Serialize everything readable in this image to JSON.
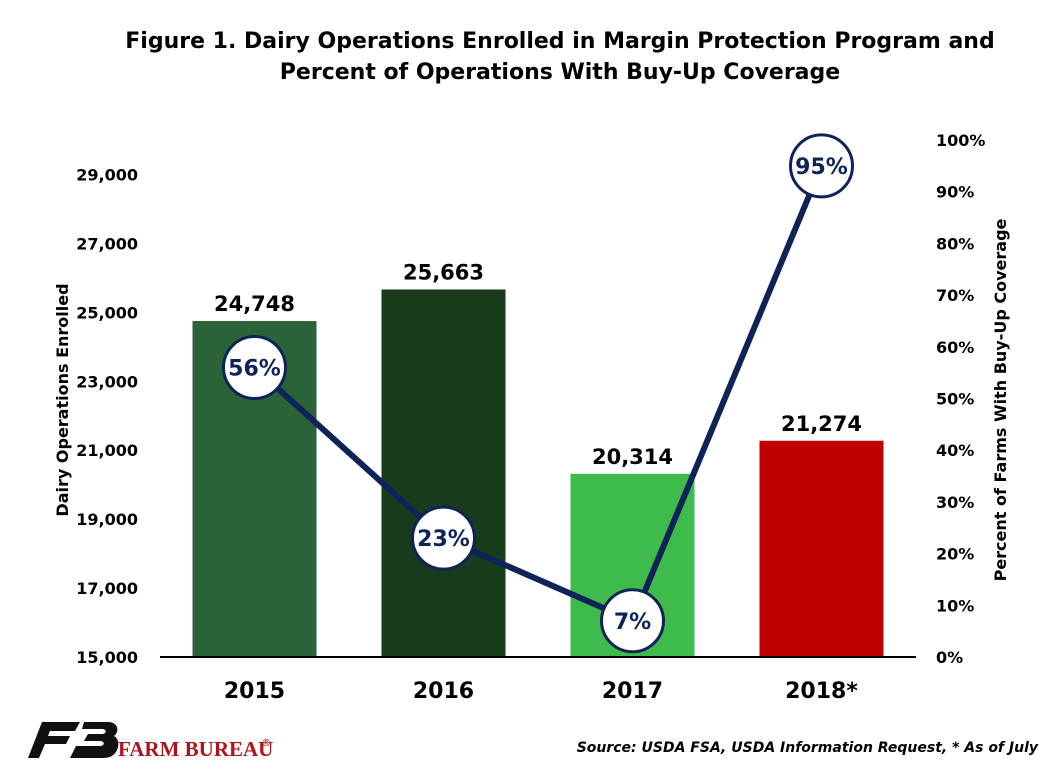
{
  "chart_data": {
    "type": "bar",
    "title_lines": [
      "Figure 1. Dairy Operations Enrolled in Margin Protection Program and",
      "Percent of Operations With Buy-Up Coverage"
    ],
    "categories": [
      "2015",
      "2016",
      "2017",
      "2018*"
    ],
    "series": [
      {
        "name": "Dairy Operations Enrolled",
        "type": "bar",
        "axis": "left",
        "values": [
          24748,
          25663,
          20314,
          21274
        ],
        "value_labels": [
          "24,748",
          "25,663",
          "20,314",
          "21,274"
        ],
        "colors": [
          "#2a6337",
          "#183b1c",
          "#3fbb4c",
          "#c00000"
        ]
      },
      {
        "name": "Percent of Farms With Buy-Up Coverage",
        "type": "line",
        "axis": "right",
        "values": [
          56,
          23,
          7,
          95
        ],
        "value_labels": [
          "56%",
          "23%",
          "7%",
          "95%"
        ],
        "color": "#102358"
      }
    ],
    "ylabel": "Dairy Operations Enrolled",
    "ylabel_right": "Percent of Farms With Buy-Up Coverage",
    "ylim": [
      15000,
      30000
    ],
    "yticks": [
      15000,
      17000,
      19000,
      21000,
      23000,
      25000,
      27000,
      29000
    ],
    "ytick_labels": [
      "15,000",
      "17,000",
      "19,000",
      "21,000",
      "23,000",
      "25,000",
      "27,000",
      "29,000"
    ],
    "ylim_right": [
      0,
      100
    ],
    "yticks_right": [
      0,
      10,
      20,
      30,
      40,
      50,
      60,
      70,
      80,
      90,
      100
    ],
    "ytick_labels_right": [
      "0%",
      "10%",
      "20%",
      "30%",
      "40%",
      "50%",
      "60%",
      "70%",
      "80%",
      "90%",
      "100%"
    ],
    "grid": false,
    "legend": "none"
  },
  "footer": {
    "source": "Source: USDA FSA, USDA Information Request, * As of July",
    "brand": "FARM BUREAU",
    "brand_mark": "®",
    "logo_icon": "farm-bureau-fb-logo",
    "brand_color": "#b1131a"
  }
}
